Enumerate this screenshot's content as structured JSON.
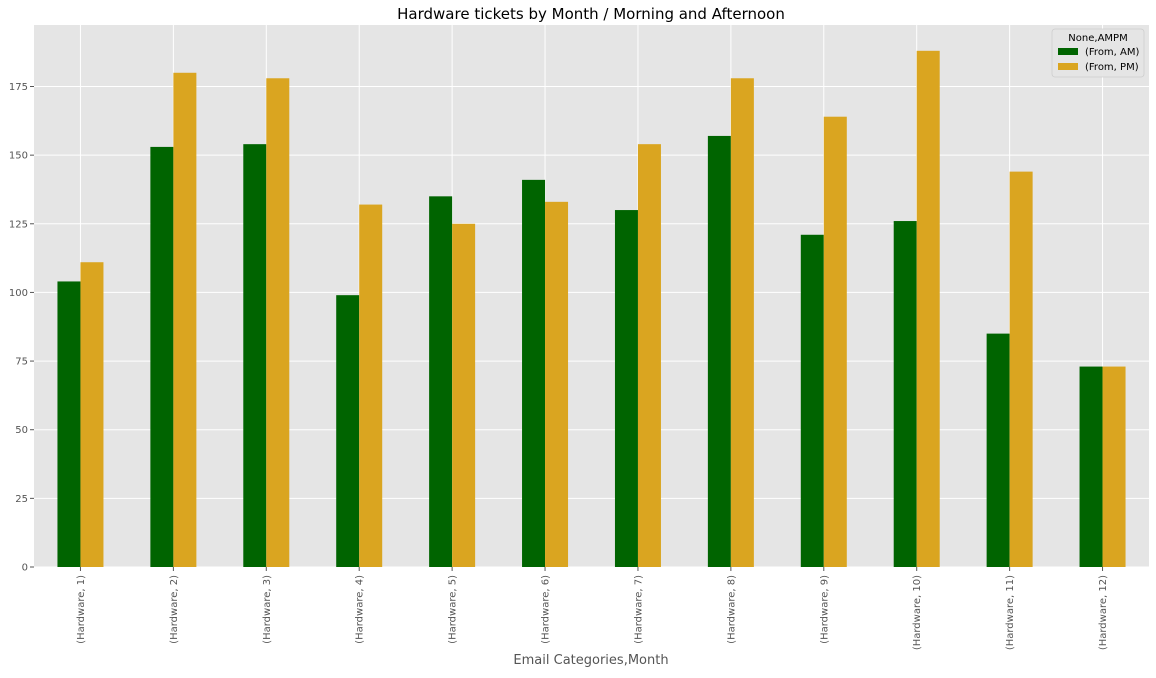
{
  "chart_data": {
    "type": "bar",
    "title": "Hardware tickets by Month / Morning and Afternoon",
    "xlabel": "Email Categories,Month",
    "ylabel": "",
    "categories": [
      "(Hardware, 1)",
      "(Hardware, 2)",
      "(Hardware, 3)",
      "(Hardware, 4)",
      "(Hardware, 5)",
      "(Hardware, 6)",
      "(Hardware, 7)",
      "(Hardware, 8)",
      "(Hardware, 9)",
      "(Hardware, 10)",
      "(Hardware, 11)",
      "(Hardware, 12)"
    ],
    "series": [
      {
        "name": "(From, AM)",
        "color": "#006400",
        "values": [
          104,
          153,
          154,
          99,
          135,
          141,
          130,
          157,
          121,
          126,
          85,
          73
        ]
      },
      {
        "name": "(From, PM)",
        "color": "#DAA520",
        "values": [
          111,
          180,
          178,
          132,
          125,
          133,
          154,
          178,
          164,
          188,
          144,
          73
        ]
      }
    ],
    "ylim": [
      0,
      197.4
    ],
    "yticks": [
      0,
      25,
      50,
      75,
      100,
      125,
      150,
      175
    ],
    "grid": true,
    "legend": {
      "title": "None,AMPM",
      "position": "top-right"
    },
    "style": {
      "plot_background": "#E5E5E5",
      "grid_color": "#FFFFFF",
      "text_color": "#555555",
      "title_color": "#000000"
    }
  }
}
